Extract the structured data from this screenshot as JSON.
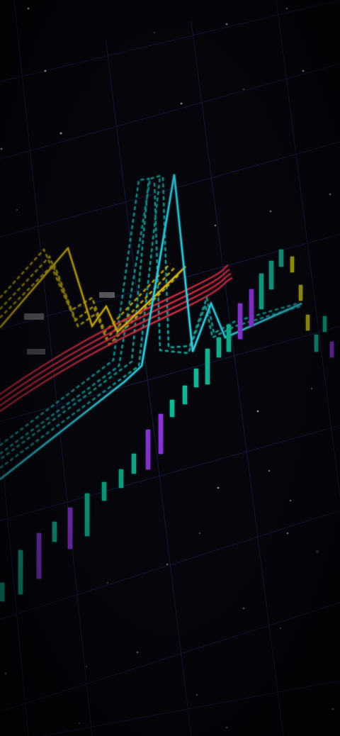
{
  "scene": {
    "description_free": true,
    "palette": {
      "background": "#05050a",
      "grid": "#1c1f52",
      "teal_candle": "#19c9a0",
      "purple_candle": "#9b3cf0",
      "yellow_candle": "#d8d81a",
      "cyan_line": "#38d8e8",
      "yellow_line": "#e6c21a",
      "red_line": "#e8324a",
      "teal_dashed": "#21b8b0",
      "label_box": "#8a8a8a"
    }
  }
}
